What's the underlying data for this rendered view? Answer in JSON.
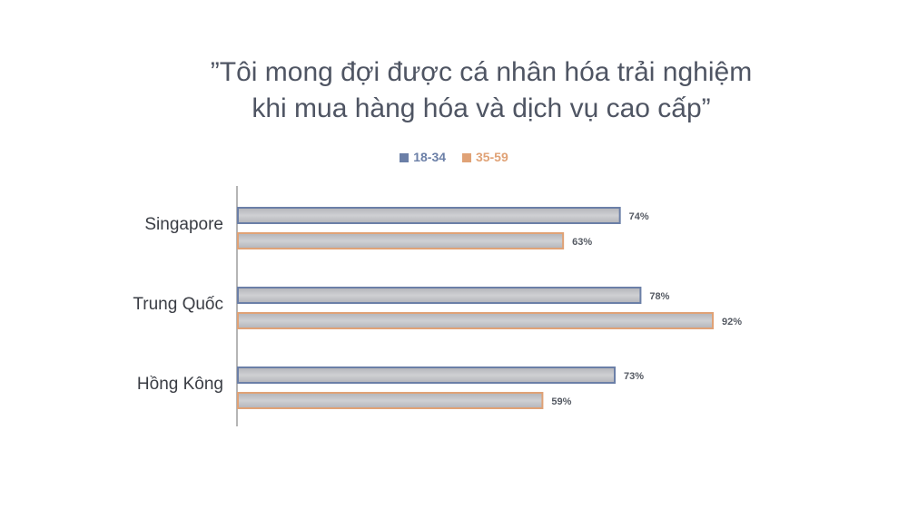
{
  "chart_data": {
    "type": "bar",
    "orientation": "horizontal",
    "title": [
      "”Tôi mong đợi được cá nhân hóa trải nghiệm",
      "khi mua hàng hóa và dịch vụ cao cấp”"
    ],
    "categories": [
      "Singapore",
      "Trung Quốc",
      "Hồng Kông"
    ],
    "series": [
      {
        "name": "18-34",
        "color": "#6b7fa7",
        "values": [
          74,
          78,
          73
        ]
      },
      {
        "name": "35-59",
        "color": "#e0a276",
        "values": [
          63,
          92,
          59
        ]
      }
    ],
    "value_suffix": "%",
    "xlim": [
      0,
      100
    ],
    "legend_position": "top-center",
    "grid": false
  }
}
